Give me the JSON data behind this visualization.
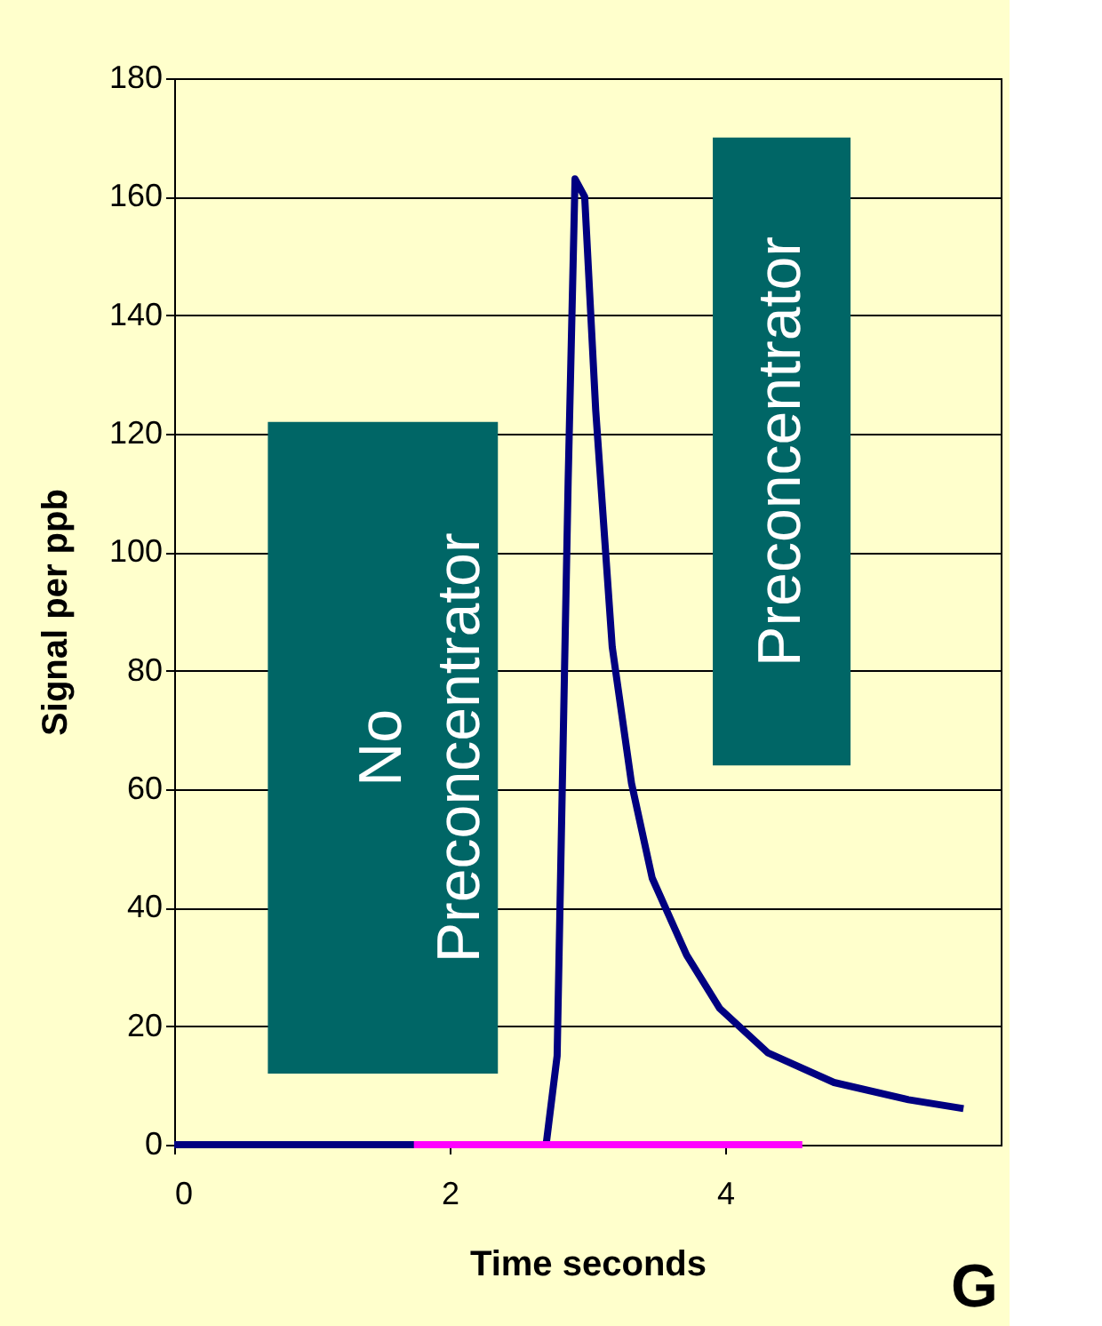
{
  "chart_data": {
    "type": "line",
    "xlabel": "Time seconds",
    "ylabel": "Signal per ppb",
    "xlim": [
      0,
      6
    ],
    "xticks": [
      0,
      2,
      4
    ],
    "ylim": [
      0,
      180
    ],
    "yticks": [
      0,
      20,
      40,
      60,
      80,
      100,
      120,
      140,
      160,
      180
    ],
    "grid": "y",
    "marker": "none",
    "line_style": "solid",
    "series": [
      {
        "color": "#000080",
        "x": [
          0,
          2.7,
          2.78,
          2.86,
          2.91,
          2.98,
          3.06,
          3.18,
          3.32,
          3.47,
          3.72,
          3.96,
          4.31,
          4.79,
          5.33,
          5.73
        ],
        "values": [
          0,
          0,
          15,
          112,
          163,
          160,
          124,
          84,
          61,
          45,
          32,
          23,
          15.5,
          10.5,
          7.6,
          6.1
        ]
      },
      {
        "color": "#ff00ff",
        "x": [
          1.74,
          4.56
        ],
        "values": [
          0,
          0
        ]
      }
    ],
    "annotations": [
      "No\nPreconcentrator",
      "Preconcentrator",
      "G"
    ]
  }
}
